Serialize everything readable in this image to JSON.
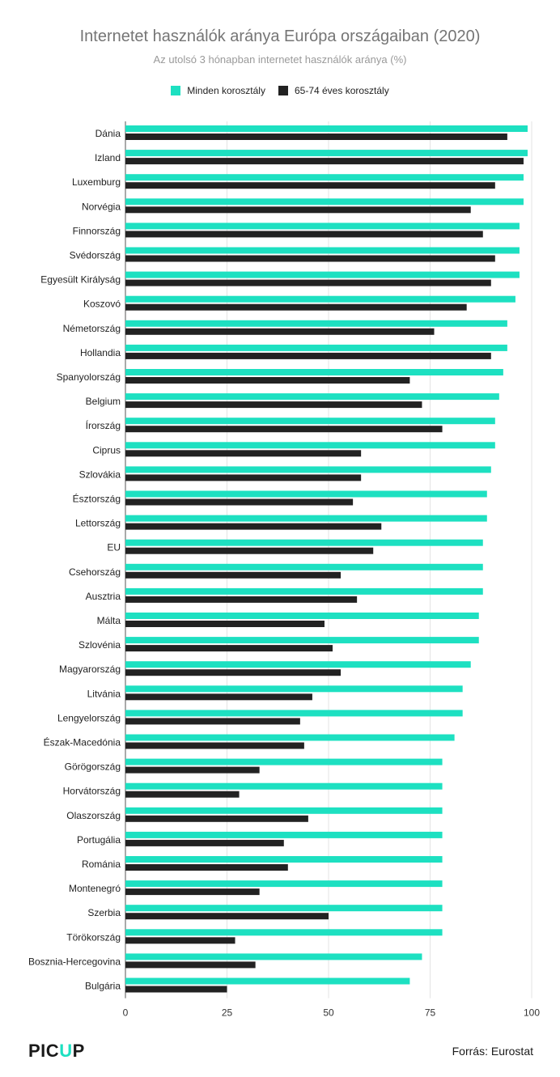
{
  "chart_data": {
    "type": "bar",
    "orientation": "horizontal",
    "title": "Internetet használók aránya Európa országaiban (2020)",
    "subtitle": "Az utolsó 3 hónapban internetet használók aránya (%)",
    "categories": [
      "Dánia",
      "Izland",
      "Luxemburg",
      "Norvégia",
      "Finnország",
      "Svédország",
      "Egyesült Királyság",
      "Koszovó",
      "Németország",
      "Hollandia",
      "Spanyolország",
      "Belgium",
      "Írország",
      "Ciprus",
      "Szlovákia",
      "Észtország",
      "Lettország",
      "EU",
      "Csehország",
      "Ausztria",
      "Málta",
      "Szlovénia",
      "Magyarország",
      "Litvánia",
      "Lengyelország",
      "Észak-Macedónia",
      "Görögország",
      "Horvátország",
      "Olaszország",
      "Portugália",
      "Románia",
      "Montenegró",
      "Szerbia",
      "Törökország",
      "Bosznia-Hercegovina",
      "Bulgária"
    ],
    "series": [
      {
        "name": "Minden korosztály",
        "color": "#1de0c1",
        "values": [
          99,
          99,
          98,
          98,
          97,
          97,
          97,
          96,
          94,
          94,
          93,
          92,
          91,
          91,
          90,
          89,
          89,
          88,
          88,
          88,
          87,
          87,
          85,
          83,
          83,
          81,
          78,
          78,
          78,
          78,
          78,
          78,
          78,
          78,
          73,
          70
        ]
      },
      {
        "name": "65-74 éves korosztály",
        "color": "#222222",
        "values": [
          94,
          98,
          91,
          85,
          88,
          91,
          90,
          84,
          76,
          90,
          70,
          73,
          78,
          58,
          58,
          56,
          63,
          61,
          53,
          57,
          49,
          51,
          53,
          46,
          43,
          44,
          33,
          28,
          45,
          39,
          40,
          33,
          50,
          27,
          32,
          25
        ]
      }
    ],
    "xlim": [
      0,
      100
    ],
    "xticks": [
      "0",
      "25",
      "50",
      "75",
      "100"
    ],
    "grid": true,
    "legend_position": "top-center"
  },
  "footer": {
    "logo_part1": "PIC",
    "logo_part2": "U",
    "logo_part3": "P",
    "source": "Forrás: Eurostat"
  }
}
